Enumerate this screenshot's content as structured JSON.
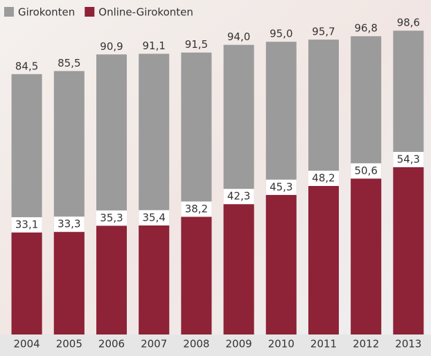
{
  "chart_data": {
    "type": "bar",
    "mode": "overlap",
    "categories": [
      "2004",
      "2005",
      "2006",
      "2007",
      "2008",
      "2009",
      "2010",
      "2011",
      "2012",
      "2013"
    ],
    "series": [
      {
        "name": "Girokonten",
        "color": "#9b9b9b",
        "values": [
          84.5,
          85.5,
          90.9,
          91.1,
          91.5,
          94.0,
          95.0,
          95.7,
          96.8,
          98.6
        ],
        "value_labels": [
          "84,5",
          "85,5",
          "90,9",
          "91,1",
          "91,5",
          "94,0",
          "95,0",
          "95,7",
          "96,8",
          "98,6"
        ]
      },
      {
        "name": "Online-Girokonten",
        "color": "#8e2236",
        "values": [
          33.1,
          33.3,
          35.3,
          35.4,
          38.2,
          42.3,
          45.3,
          48.2,
          50.6,
          54.3
        ],
        "value_labels": [
          "33,1",
          "33,3",
          "35,3",
          "35,4",
          "38,2",
          "42,3",
          "45,3",
          "48,2",
          "50,6",
          "54,3"
        ]
      }
    ],
    "ylim": [
      0,
      100
    ]
  }
}
